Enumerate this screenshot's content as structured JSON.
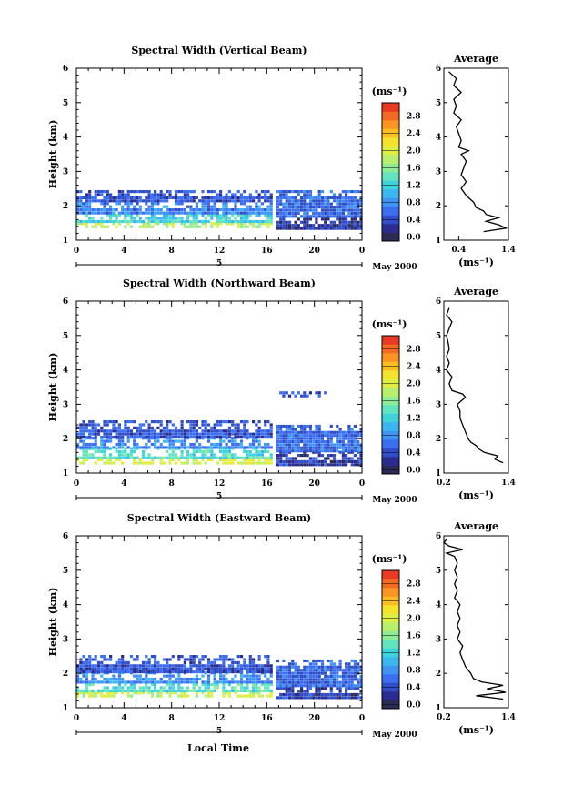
{
  "common": {
    "x_ticks": [
      "0",
      "4",
      "8",
      "12",
      "16",
      "20",
      "0"
    ],
    "y_ticks": [
      "1",
      "2",
      "3",
      "4",
      "5",
      "6"
    ],
    "day_label": "5",
    "ylabel": "Height (km)",
    "xlabel": "Local Time",
    "colorbar_unit": "(ms⁻¹)",
    "profile_title": "Average",
    "profile_unit": "(ms⁻¹)"
  },
  "colors": {
    "scale": [
      "#2b2b55",
      "#2a2c8f",
      "#2f4ec8",
      "#3c6ef0",
      "#3f95f5",
      "#3cb6ef",
      "#3fd3dc",
      "#63e3be",
      "#8eec97",
      "#b8ef6c",
      "#dbef45",
      "#f4e22b",
      "#fbbd22",
      "#fa9521",
      "#f46a22",
      "#e93b24"
    ]
  },
  "chart_data": [
    {
      "type": "heatmap",
      "title": "Spectral Width (Vertical Beam)",
      "date_label": "May 2000",
      "xlim": [
        0,
        24
      ],
      "ylim": [
        1,
        6
      ],
      "colorbar": {
        "ticks": [
          "0.0",
          "0.4",
          "0.8",
          "1.2",
          "1.6",
          "2.0",
          "2.4",
          "2.8"
        ],
        "range": [
          0,
          3.0
        ]
      },
      "regions": [
        {
          "t0": 0,
          "t1": 16.3,
          "h0": 1.35,
          "h1": 1.5,
          "v": 1.8
        },
        {
          "t0": 0,
          "t1": 16.3,
          "h0": 1.5,
          "h1": 1.75,
          "v": 1.2
        },
        {
          "t0": 0,
          "t1": 16.3,
          "h0": 1.75,
          "h1": 2.1,
          "v": 0.7
        },
        {
          "t0": 0,
          "t1": 16.3,
          "h0": 2.1,
          "h1": 2.45,
          "v": 0.45
        },
        {
          "t0": 16.8,
          "t1": 24,
          "h0": 1.3,
          "h1": 1.65,
          "v": 0.25
        },
        {
          "t0": 16.8,
          "t1": 24,
          "h0": 1.65,
          "h1": 2.45,
          "v": 0.55
        }
      ],
      "profile": {
        "xlim": [
          0.1,
          1.4
        ],
        "xticks": [
          "0.4",
          "1.4"
        ],
        "h": [
          1.25,
          1.35,
          1.45,
          1.55,
          1.65,
          1.75,
          1.85,
          1.95,
          2.1,
          2.3,
          2.5,
          2.7,
          2.9,
          3.1,
          3.3,
          3.5,
          3.6,
          3.7,
          3.9,
          4.1,
          4.3,
          4.5,
          4.7,
          4.9,
          5.1,
          5.3,
          5.5,
          5.7,
          5.9
        ],
        "v": [
          0.9,
          1.35,
          1.2,
          0.95,
          1.2,
          0.95,
          0.9,
          0.75,
          0.7,
          0.55,
          0.45,
          0.55,
          0.45,
          0.5,
          0.55,
          0.45,
          0.6,
          0.4,
          0.45,
          0.4,
          0.35,
          0.45,
          0.3,
          0.35,
          0.3,
          0.45,
          0.3,
          0.35,
          0.2
        ]
      }
    },
    {
      "type": "heatmap",
      "title": "Spectral Width (Northward Beam)",
      "date_label": "May 2000",
      "xlim": [
        0,
        24
      ],
      "ylim": [
        1,
        6
      ],
      "colorbar": {
        "ticks": [
          "0.0",
          "0.4",
          "0.8",
          "1.2",
          "1.6",
          "2.0",
          "2.4",
          "2.8"
        ],
        "range": [
          0,
          3.0
        ]
      },
      "regions": [
        {
          "t0": 0,
          "t1": 16.3,
          "h0": 1.25,
          "h1": 1.4,
          "v": 2.0
        },
        {
          "t0": 0,
          "t1": 16.3,
          "h0": 1.4,
          "h1": 1.7,
          "v": 1.3
        },
        {
          "t0": 0,
          "t1": 16.3,
          "h0": 1.7,
          "h1": 2.0,
          "v": 0.75
        },
        {
          "t0": 0,
          "t1": 16.3,
          "h0": 2.0,
          "h1": 2.45,
          "v": 0.45
        },
        {
          "t0": 16.8,
          "t1": 24,
          "h0": 1.2,
          "h1": 1.6,
          "v": 0.3
        },
        {
          "t0": 16.8,
          "t1": 24,
          "h0": 1.6,
          "h1": 2.4,
          "v": 0.55
        },
        {
          "t0": 16.8,
          "t1": 21,
          "h0": 3.2,
          "h1": 3.3,
          "v": 0.45
        }
      ],
      "profile": {
        "xlim": [
          0.2,
          1.4
        ],
        "xticks": [
          "0.2",
          "1.4"
        ],
        "h": [
          1.3,
          1.4,
          1.5,
          1.6,
          1.7,
          1.8,
          1.9,
          2.0,
          2.2,
          2.4,
          2.6,
          2.8,
          3.0,
          3.2,
          3.3,
          3.4,
          3.6,
          3.8,
          4.0,
          4.2,
          4.4,
          4.6,
          4.8,
          5.0,
          5.2,
          5.4,
          5.6,
          5.8
        ],
        "v": [
          1.3,
          1.15,
          1.2,
          0.95,
          0.85,
          0.8,
          0.7,
          0.65,
          0.6,
          0.55,
          0.5,
          0.5,
          0.45,
          0.6,
          0.55,
          0.35,
          0.3,
          0.35,
          0.25,
          0.3,
          0.25,
          0.3,
          0.28,
          0.25,
          0.3,
          0.35,
          0.25,
          0.3
        ]
      }
    },
    {
      "type": "heatmap",
      "title": "Spectral Width (Eastward Beam)",
      "date_label": "May 2000",
      "xlim": [
        0,
        24
      ],
      "ylim": [
        1,
        6
      ],
      "colorbar": {
        "ticks": [
          "0.0",
          "0.4",
          "0.8",
          "1.2",
          "1.6",
          "2.0",
          "2.4",
          "2.8"
        ],
        "range": [
          0,
          3.0
        ]
      },
      "regions": [
        {
          "t0": 0,
          "t1": 16.3,
          "h0": 1.3,
          "h1": 1.45,
          "v": 1.9
        },
        {
          "t0": 0,
          "t1": 16.3,
          "h0": 1.45,
          "h1": 1.7,
          "v": 1.3
        },
        {
          "t0": 0,
          "t1": 16.3,
          "h0": 1.7,
          "h1": 2.0,
          "v": 0.75
        },
        {
          "t0": 0,
          "t1": 16.3,
          "h0": 2.0,
          "h1": 2.45,
          "v": 0.45
        },
        {
          "t0": 16.8,
          "t1": 24,
          "h0": 1.25,
          "h1": 1.6,
          "v": 0.3
        },
        {
          "t0": 16.8,
          "t1": 24,
          "h0": 1.6,
          "h1": 2.4,
          "v": 0.55
        }
      ],
      "profile": {
        "xlim": [
          0.2,
          1.4
        ],
        "xticks": [
          "0.2",
          "1.4"
        ],
        "h": [
          1.25,
          1.35,
          1.45,
          1.55,
          1.65,
          1.75,
          1.85,
          2.0,
          2.2,
          2.4,
          2.6,
          2.8,
          3.0,
          3.2,
          3.4,
          3.6,
          3.8,
          4.0,
          4.2,
          4.4,
          4.6,
          4.8,
          5.0,
          5.2,
          5.4,
          5.5,
          5.6,
          5.7,
          5.8,
          5.9
        ],
        "v": [
          1.3,
          0.8,
          1.35,
          1.0,
          1.3,
          0.9,
          0.75,
          0.7,
          0.6,
          0.55,
          0.5,
          0.55,
          0.45,
          0.5,
          0.45,
          0.5,
          0.45,
          0.5,
          0.4,
          0.45,
          0.4,
          0.45,
          0.4,
          0.45,
          0.4,
          0.25,
          0.55,
          0.3,
          0.2,
          0.25
        ]
      }
    }
  ]
}
